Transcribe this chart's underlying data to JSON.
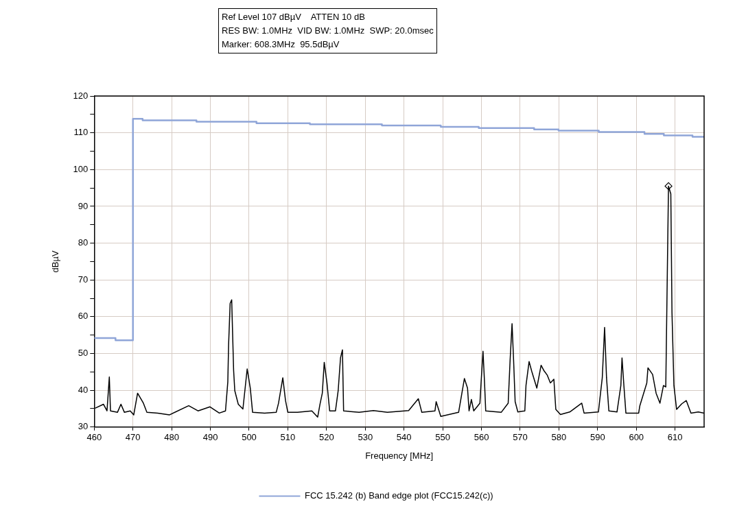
{
  "chart_data": {
    "type": "line",
    "xlabel": "Frequency [MHz]",
    "ylabel": "dBµV",
    "annotations": [
      "Ref Level 107 dBµV    ATTEN 10 dB",
      "RES BW: 1.0MHz  VID BW: 1.0MHz  SWP: 20.0msec",
      "Marker: 608.3MHz  95.5dBµV"
    ],
    "xlim": [
      460,
      617.5
    ],
    "xticks": [
      460,
      470,
      480,
      490,
      500,
      510,
      520,
      530,
      540,
      550,
      560,
      570,
      580,
      590,
      600,
      610
    ],
    "ylim": [
      30,
      120
    ],
    "yticks": [
      30,
      {
        "value": 35,
        "label": null
      },
      40,
      {
        "value": 45,
        "label": null
      },
      50,
      {
        "value": 55,
        "label": null
      },
      60,
      {
        "value": 65,
        "label": null
      },
      70,
      {
        "value": 75,
        "label": null
      },
      80,
      {
        "value": 85,
        "label": null
      },
      90,
      {
        "value": 95,
        "label": null
      },
      100,
      {
        "value": 105,
        "label": null
      },
      110,
      {
        "value": 115,
        "label": null
      },
      120
    ],
    "grid": true,
    "legend": "bottom",
    "marker": "none",
    "line_style": "solid",
    "series": [
      {
        "type": "line",
        "color": "#000000",
        "x": [
          460.2,
          462.4,
          463.3,
          463.9,
          464.2,
          466.0,
          466.9,
          467.8,
          469.3,
          470.2,
          471.2,
          472.7,
          473.6,
          476.4,
          479.4,
          484.4,
          486.8,
          489.9,
          492.3,
          493.9,
          494.5,
          494.7,
          495.1,
          495.5,
          496.0,
          496.3,
          497.2,
          498.4,
          499.5,
          500.3,
          500.9,
          504.0,
          507.0,
          507.6,
          508.7,
          509.4,
          510.0,
          512.5,
          516.2,
          517.7,
          518.3,
          518.9,
          519.4,
          520.1,
          520.8,
          522.3,
          523.0,
          523.6,
          524.1,
          524.4,
          528.4,
          532.1,
          535.7,
          541.2,
          543.7,
          544.6,
          548.0,
          548.3,
          549.5,
          554.1,
          555.6,
          556.4,
          556.8,
          557.4,
          558.0,
          559.6,
          559.9,
          560.4,
          560.8,
          561.1,
          565.1,
          566.9,
          567.4,
          567.9,
          568.3,
          568.7,
          569.4,
          571.2,
          571.5,
          572.3,
          573.0,
          574.3,
          575.4,
          576.1,
          577.0,
          577.8,
          578.7,
          579.2,
          580.4,
          582.8,
          585.9,
          586.5,
          590.2,
          591.2,
          591.8,
          592.3,
          592.9,
          595.0,
          596.0,
          596.3,
          596.8,
          597.3,
          600.6,
          600.9,
          602.7,
          603.0,
          604.2,
          605.1,
          606.1,
          607.0,
          607.6,
          607.9,
          608.3,
          608.9,
          609.2,
          609.7,
          610.4,
          611.7,
          612.9,
          614.1,
          616.0,
          617.5
        ],
        "values": [
          35.1,
          36.2,
          34.4,
          43.6,
          34.4,
          34.0,
          36.2,
          34.0,
          34.4,
          33.3,
          39.2,
          36.5,
          34.0,
          33.8,
          33.3,
          35.8,
          34.4,
          35.5,
          33.8,
          34.4,
          42.3,
          52.3,
          63.6,
          64.6,
          45.4,
          39.9,
          36.2,
          34.9,
          45.8,
          40.6,
          34.0,
          33.8,
          34.0,
          36.5,
          43.4,
          37.2,
          34.0,
          34.0,
          34.4,
          32.7,
          36.2,
          39.2,
          47.6,
          42.0,
          34.4,
          34.4,
          39.9,
          48.8,
          51.0,
          34.4,
          34.0,
          34.5,
          34.0,
          34.5,
          37.7,
          34.0,
          34.4,
          36.9,
          32.9,
          34.0,
          43.2,
          40.6,
          34.4,
          37.5,
          34.4,
          36.5,
          42.0,
          50.6,
          42.0,
          34.4,
          34.0,
          36.5,
          48.2,
          58.1,
          48.2,
          36.9,
          34.1,
          34.4,
          41.3,
          47.8,
          45.1,
          40.6,
          46.8,
          45.4,
          44.1,
          42.0,
          43.0,
          34.8,
          33.4,
          34.1,
          36.5,
          33.8,
          34.1,
          43.4,
          57.1,
          43.4,
          34.4,
          34.1,
          41.3,
          48.8,
          41.0,
          33.8,
          33.8,
          35.8,
          42.0,
          46.1,
          44.3,
          39.2,
          36.5,
          41.3,
          40.9,
          64.3,
          95.5,
          93.4,
          61.2,
          41.3,
          34.8,
          36.3,
          37.2,
          33.8,
          34.1,
          33.8
        ]
      },
      {
        "type": "step",
        "name": "FCC 15.242 (b) Band edge plot (FCC15.242(c))",
        "color": "#8fa5d8",
        "x": [
          460,
          465.5,
          470,
          472.5,
          486.4,
          501.9,
          515.7,
          534.3,
          549.5,
          559.3,
          573.6,
          579.9,
          590.3,
          602.1,
          607.1,
          614.5,
          617.5
        ],
        "values": [
          54.2,
          53.6,
          113.8,
          113.4,
          113.0,
          112.6,
          112.3,
          112.0,
          111.6,
          111.3,
          110.9,
          110.6,
          110.2,
          109.7,
          109.3,
          108.9,
          108.9
        ]
      },
      {
        "type": "scatter",
        "color": "#000000",
        "marker": "diamond",
        "x": [
          608.3
        ],
        "values": [
          95.5
        ]
      }
    ]
  }
}
